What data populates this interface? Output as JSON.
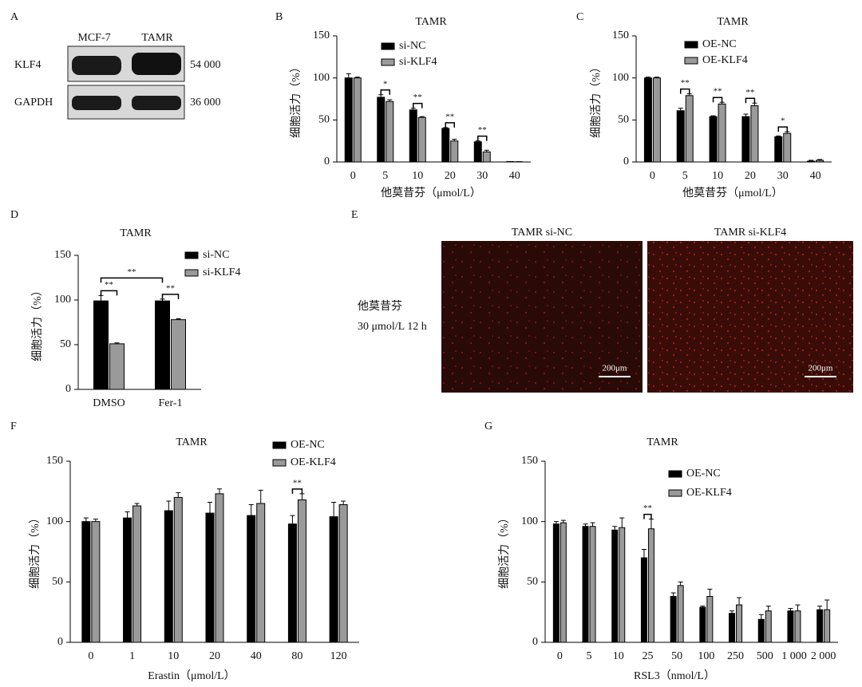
{
  "blot": {
    "panel": "A",
    "columns": [
      "MCF-7",
      "TAMR"
    ],
    "rows": [
      {
        "name": "KLF4",
        "size": "54 000"
      },
      {
        "name": "GAPDH",
        "size": "36 000"
      }
    ]
  },
  "micrograph": {
    "panel": "E",
    "titles": [
      "TAMR si-NC",
      "TAMR si-KLF4"
    ],
    "side_label": [
      "他莫昔芬",
      "30 μmol/L 12 h"
    ],
    "scale_bar": "200μm"
  },
  "chart_data": [
    {
      "type": "bar",
      "panel": "B",
      "title": "TAMR",
      "xlabel": "他莫昔芬（μmol/L）",
      "ylabel": "细胞活力（%）",
      "categories": [
        "0",
        "5",
        "10",
        "20",
        "30",
        "40"
      ],
      "series": [
        {
          "name": "si-NC",
          "color": "#000000",
          "values": [
            100,
            77,
            62,
            40,
            24,
            0.5
          ],
          "errors": [
            5,
            3,
            2,
            1,
            1,
            0
          ]
        },
        {
          "name": "si-KLF4",
          "color": "#9a9a9a",
          "values": [
            100,
            72,
            53,
            25,
            12,
            0.3
          ],
          "errors": [
            1,
            2,
            1,
            2,
            2,
            0
          ]
        }
      ],
      "annotations": [
        {
          "text": "*",
          "categories": [
            "5"
          ]
        },
        {
          "text": "**",
          "categories": [
            "10"
          ]
        },
        {
          "text": "**",
          "categories": [
            "20"
          ]
        },
        {
          "text": "**",
          "categories": [
            "30"
          ]
        }
      ],
      "ylim": [
        0,
        150
      ],
      "yticks": [
        0,
        50,
        100,
        150
      ]
    },
    {
      "type": "bar",
      "panel": "C",
      "title": "TAMR",
      "xlabel": "他莫昔芬（μmol/L）",
      "ylabel": "细胞活力（%）",
      "categories": [
        "0",
        "5",
        "10",
        "20",
        "30",
        "40"
      ],
      "series": [
        {
          "name": "OE-NC",
          "color": "#000000",
          "values": [
            100,
            61,
            54,
            54,
            30,
            1
          ],
          "errors": [
            1,
            3,
            1,
            3,
            1,
            1
          ]
        },
        {
          "name": "OE-KLF4",
          "color": "#9a9a9a",
          "values": [
            100,
            79,
            69,
            67,
            34,
            2
          ],
          "errors": [
            1,
            2,
            2,
            3,
            2,
            1
          ]
        }
      ],
      "annotations": [
        {
          "text": "**",
          "categories": [
            "5"
          ]
        },
        {
          "text": "**",
          "categories": [
            "10"
          ]
        },
        {
          "text": "**",
          "categories": [
            "20"
          ]
        },
        {
          "text": "*",
          "categories": [
            "30"
          ]
        }
      ],
      "ylim": [
        0,
        150
      ],
      "yticks": [
        0,
        50,
        100,
        150
      ]
    },
    {
      "type": "bar",
      "panel": "D",
      "title": "TAMR",
      "ylabel": "细胞活力（%）",
      "categories": [
        "DMSO",
        "Fer-1"
      ],
      "series": [
        {
          "name": "si-NC",
          "color": "#000000",
          "values": [
            99,
            99
          ],
          "errors": [
            6,
            2
          ]
        },
        {
          "name": "si-KLF4",
          "color": "#9a9a9a",
          "values": [
            51,
            78
          ],
          "errors": [
            1,
            1
          ]
        }
      ],
      "annotations": [
        {
          "text": "**",
          "categories": [
            "DMSO"
          ]
        },
        {
          "text": "**",
          "categories": [
            "Fer-1"
          ]
        },
        {
          "text": "**",
          "categories": [
            "DMSO",
            "Fer-1"
          ]
        }
      ],
      "ylim": [
        0,
        150
      ],
      "yticks": [
        0,
        50,
        100,
        150
      ]
    },
    {
      "type": "bar",
      "panel": "F",
      "title": "TAMR",
      "xlabel": "Erastin（μmol/L）",
      "ylabel": "细胞活力（%）",
      "categories": [
        "0",
        "1",
        "10",
        "20",
        "40",
        "80",
        "120"
      ],
      "series": [
        {
          "name": "OE-NC",
          "color": "#000000",
          "values": [
            100,
            103,
            109,
            107,
            105,
            98,
            104
          ],
          "errors": [
            3,
            5,
            8,
            9,
            9,
            7,
            12
          ]
        },
        {
          "name": "OE-KLF4",
          "color": "#9a9a9a",
          "values": [
            100,
            113,
            120,
            123,
            115,
            118,
            114
          ],
          "errors": [
            2,
            2,
            4,
            4,
            11,
            5,
            3
          ]
        }
      ],
      "annotations": [
        {
          "text": "**",
          "categories": [
            "80"
          ]
        }
      ],
      "ylim": [
        0,
        150
      ],
      "yticks": [
        0,
        50,
        100,
        150
      ]
    },
    {
      "type": "bar",
      "panel": "G",
      "title": "TAMR",
      "xlabel": "RSL3（nmol/L）",
      "ylabel": "细胞活力（%）",
      "categories": [
        "0",
        "5",
        "10",
        "25",
        "50",
        "100",
        "250",
        "500",
        "1 000",
        "2 000"
      ],
      "series": [
        {
          "name": "OE-NC",
          "color": "#000000",
          "values": [
            98,
            96,
            93,
            70,
            38,
            29,
            24,
            19,
            26,
            27
          ],
          "errors": [
            2,
            2,
            3,
            7,
            3,
            1,
            2,
            4,
            2,
            3
          ]
        },
        {
          "name": "OE-KLF4",
          "color": "#9a9a9a",
          "values": [
            99,
            96,
            95,
            94,
            47,
            38,
            31,
            26,
            26,
            27
          ],
          "errors": [
            2,
            3,
            8,
            8,
            3,
            6,
            6,
            4,
            5,
            8
          ]
        }
      ],
      "annotations": [
        {
          "text": "**",
          "categories": [
            "25"
          ]
        }
      ],
      "ylim": [
        0,
        150
      ],
      "yticks": [
        0,
        50,
        100,
        150
      ]
    }
  ]
}
